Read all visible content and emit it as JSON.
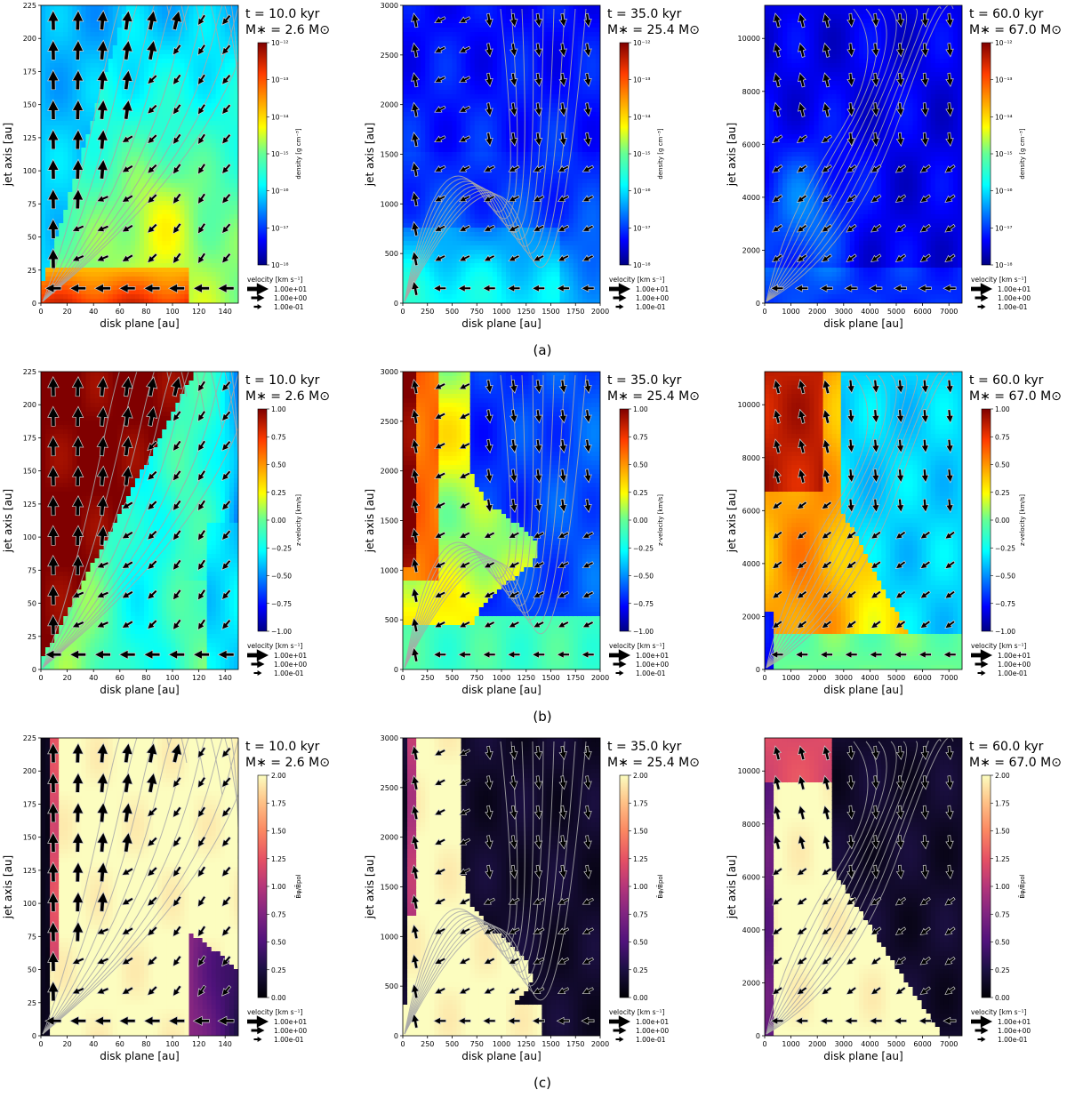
{
  "figure": {
    "row_labels": [
      "(a)",
      "(b)",
      "(c)"
    ],
    "x_label": "disk plane [au]",
    "y_label": "jet axis [au]",
    "velocity_legend": {
      "title": "velocity [km s⁻¹]",
      "entries": [
        "1.00e+01",
        "1.00e+00",
        "1.00e-01"
      ]
    }
  },
  "colors": {
    "contour": "#a8a8a8",
    "arrow_fill": "#000000",
    "arrow_edge": "#cfcfcf"
  },
  "chart_data": [
    {
      "type": "heatmap",
      "row": "a",
      "col": 0,
      "time": "t = 10.0 kyr",
      "mass": "M∗ = 2.6 M⊙",
      "xlabel": "disk plane [au]",
      "ylabel": "jet axis [au]",
      "xlim": [
        0,
        150
      ],
      "ylim": [
        0,
        225
      ],
      "xticks": [
        0,
        20,
        40,
        60,
        80,
        100,
        120,
        140
      ],
      "yticks": [
        0,
        25,
        50,
        75,
        100,
        125,
        150,
        175,
        200,
        225
      ],
      "colorbar": {
        "label": "density [g cm⁻³]",
        "scale": "log",
        "range": [
          1e-18,
          1e-12
        ],
        "ticks": [
          "10⁻¹²",
          "10⁻¹³",
          "10⁻¹⁴",
          "10⁻¹⁵",
          "10⁻¹⁶",
          "10⁻¹⁷",
          "10⁻¹⁸"
        ]
      }
    },
    {
      "type": "heatmap",
      "row": "a",
      "col": 1,
      "time": "t = 35.0 kyr",
      "mass": "M∗ = 25.4 M⊙",
      "xlabel": "disk plane [au]",
      "ylabel": "jet axis [au]",
      "xlim": [
        0,
        2000
      ],
      "ylim": [
        0,
        3000
      ],
      "xticks": [
        0,
        250,
        500,
        750,
        1000,
        1250,
        1500,
        1750,
        2000
      ],
      "yticks": [
        0,
        500,
        1000,
        1500,
        2000,
        2500,
        3000
      ],
      "colorbar": {
        "label": "density [g cm⁻³]",
        "scale": "log",
        "range": [
          1e-18,
          1e-12
        ],
        "ticks": [
          "10⁻¹²",
          "10⁻¹³",
          "10⁻¹⁴",
          "10⁻¹⁵",
          "10⁻¹⁶",
          "10⁻¹⁷",
          "10⁻¹⁸"
        ]
      }
    },
    {
      "type": "heatmap",
      "row": "a",
      "col": 2,
      "time": "t = 60.0 kyr",
      "mass": "M∗ = 67.0 M⊙",
      "xlabel": "disk plane [au]",
      "ylabel": "jet axis [au]",
      "xlim": [
        0,
        7500
      ],
      "ylim": [
        0,
        11250
      ],
      "xticks": [
        0,
        1000,
        2000,
        3000,
        4000,
        5000,
        6000,
        7000
      ],
      "yticks": [
        0,
        2000,
        4000,
        6000,
        8000,
        10000
      ],
      "colorbar": {
        "label": "density [g cm⁻³]",
        "scale": "log",
        "range": [
          1e-18,
          1e-12
        ],
        "ticks": [
          "10⁻¹²",
          "10⁻¹³",
          "10⁻¹⁴",
          "10⁻¹⁵",
          "10⁻¹⁶",
          "10⁻¹⁷",
          "10⁻¹⁸"
        ]
      }
    },
    {
      "type": "heatmap",
      "row": "b",
      "col": 0,
      "time": "t = 10.0 kyr",
      "mass": "M∗ = 2.6 M⊙",
      "xlabel": "disk plane [au]",
      "ylabel": "jet axis [au]",
      "xlim": [
        0,
        150
      ],
      "ylim": [
        0,
        225
      ],
      "xticks": [
        0,
        20,
        40,
        60,
        80,
        100,
        120,
        140
      ],
      "yticks": [
        0,
        25,
        50,
        75,
        100,
        125,
        150,
        175,
        200,
        225
      ],
      "colorbar": {
        "label": "z-velocity [km/s]",
        "scale": "linear",
        "range": [
          -1,
          1
        ],
        "ticks": [
          "1.00",
          "0.75",
          "0.50",
          "0.25",
          "0.00",
          "−0.25",
          "−0.50",
          "−0.75",
          "−1.00"
        ]
      }
    },
    {
      "type": "heatmap",
      "row": "b",
      "col": 1,
      "time": "t = 35.0 kyr",
      "mass": "M∗ = 25.4 M⊙",
      "xlabel": "disk plane [au]",
      "ylabel": "jet axis [au]",
      "xlim": [
        0,
        2000
      ],
      "ylim": [
        0,
        3000
      ],
      "xticks": [
        0,
        250,
        500,
        750,
        1000,
        1250,
        1500,
        1750,
        2000
      ],
      "yticks": [
        0,
        500,
        1000,
        1500,
        2000,
        2500,
        3000
      ],
      "colorbar": {
        "label": "z-velocity [km/s]",
        "scale": "linear",
        "range": [
          -1,
          1
        ],
        "ticks": [
          "1.00",
          "0.75",
          "0.50",
          "0.25",
          "0.00",
          "−0.25",
          "−0.50",
          "−0.75",
          "−1.00"
        ]
      }
    },
    {
      "type": "heatmap",
      "row": "b",
      "col": 2,
      "time": "t = 60.0 kyr",
      "mass": "M∗ = 67.0 M⊙",
      "xlabel": "disk plane [au]",
      "ylabel": "jet axis [au]",
      "xlim": [
        0,
        7500
      ],
      "ylim": [
        0,
        11250
      ],
      "xticks": [
        0,
        1000,
        2000,
        3000,
        4000,
        5000,
        6000,
        7000
      ],
      "yticks": [
        0,
        2000,
        4000,
        6000,
        8000,
        10000
      ],
      "colorbar": {
        "label": "z-velocity [km/s]",
        "scale": "linear",
        "range": [
          -1,
          1
        ],
        "ticks": [
          "1.00",
          "0.75",
          "0.50",
          "0.25",
          "0.00",
          "−0.25",
          "−0.50",
          "−0.75",
          "−1.00"
        ]
      }
    },
    {
      "type": "heatmap",
      "row": "c",
      "col": 0,
      "time": "t = 10.0 kyr",
      "mass": "M∗ = 2.6 M⊙",
      "xlabel": "disk plane [au]",
      "ylabel": "jet axis [au]",
      "xlim": [
        0,
        150
      ],
      "ylim": [
        0,
        225
      ],
      "xticks": [
        0,
        20,
        40,
        60,
        80,
        100,
        120,
        140
      ],
      "yticks": [
        0,
        25,
        50,
        75,
        100,
        125,
        150,
        175,
        200,
        225
      ],
      "colorbar": {
        "label": "B̄φ/B̄pol",
        "scale": "linear",
        "range": [
          0,
          2
        ],
        "ticks": [
          "2.00",
          "1.75",
          "1.50",
          "1.25",
          "1.00",
          "0.75",
          "0.50",
          "0.25",
          "0.00"
        ]
      }
    },
    {
      "type": "heatmap",
      "row": "c",
      "col": 1,
      "time": "t = 35.0 kyr",
      "mass": "M∗ = 25.4 M⊙",
      "xlabel": "disk plane [au]",
      "ylabel": "jet axis [au]",
      "xlim": [
        0,
        2000
      ],
      "ylim": [
        0,
        3000
      ],
      "xticks": [
        0,
        250,
        500,
        750,
        1000,
        1250,
        1500,
        1750,
        2000
      ],
      "yticks": [
        0,
        500,
        1000,
        1500,
        2000,
        2500,
        3000
      ],
      "colorbar": {
        "label": "B̄φ/B̄pol",
        "scale": "linear",
        "range": [
          0,
          2
        ],
        "ticks": [
          "2.00",
          "1.75",
          "1.50",
          "1.25",
          "1.00",
          "0.75",
          "0.50",
          "0.25",
          "0.00"
        ]
      }
    },
    {
      "type": "heatmap",
      "row": "c",
      "col": 2,
      "time": "t = 60.0 kyr",
      "mass": "M∗ = 67.0 M⊙",
      "xlabel": "disk plane [au]",
      "ylabel": "jet axis [au]",
      "xlim": [
        0,
        7500
      ],
      "ylim": [
        0,
        11250
      ],
      "xticks": [
        0,
        1000,
        2000,
        3000,
        4000,
        5000,
        6000,
        7000
      ],
      "yticks": [
        0,
        2000,
        4000,
        6000,
        8000,
        10000
      ],
      "colorbar": {
        "label": "B̄φ/B̄pol",
        "scale": "linear",
        "range": [
          0,
          2
        ],
        "ticks": [
          "2.00",
          "1.75",
          "1.50",
          "1.25",
          "1.00",
          "0.75",
          "0.50",
          "0.25",
          "0.00"
        ]
      }
    }
  ]
}
